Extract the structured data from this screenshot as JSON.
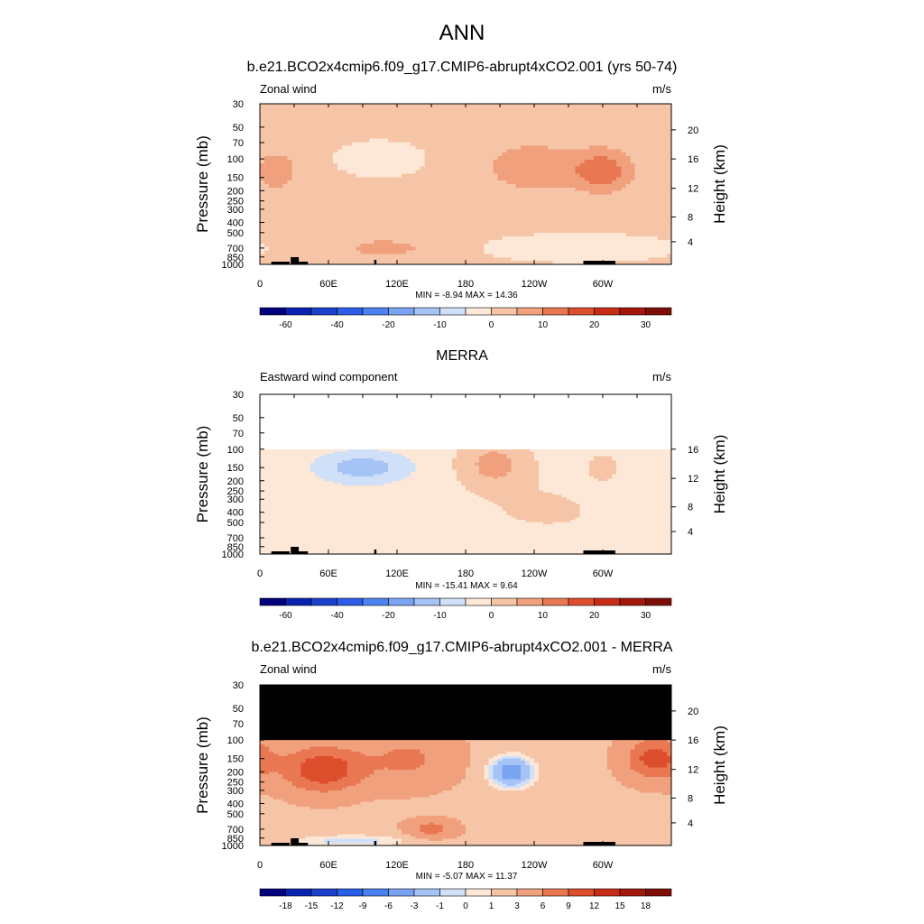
{
  "figure_title": "ANN",
  "colors": {
    "model_scale": [
      "#00007f",
      "#0a22b0",
      "#1a40cc",
      "#2a5ee6",
      "#4c82f0",
      "#7aa4f2",
      "#a6c3f5",
      "#cfe0f8",
      "#fde7d6",
      "#f6c4a6",
      "#f0a07c",
      "#e87752",
      "#dd4e2c",
      "#c72c16",
      "#a3170a",
      "#7d0d05"
    ],
    "diff_scale": [
      "#00007f",
      "#0a22b0",
      "#1a40cc",
      "#2a5ee6",
      "#4c82f0",
      "#7aa4f2",
      "#a6c3f5",
      "#cfe0f8",
      "#fde7d6",
      "#f6c4a6",
      "#f0a07c",
      "#e87752",
      "#dd4e2c",
      "#c72c16",
      "#a3170a",
      "#7d0d05"
    ],
    "missing": "#000000"
  },
  "chart_data": [
    {
      "type": "heatmap",
      "title": "b.e21.BCO2x4cmip6.f09_g17.CMIP6-abrupt4xCO2.001 (yrs 50-74)",
      "left_label": "Zonal wind",
      "unit": "m/s",
      "ylabel": "Pressure (mb)",
      "ylabel_right": "Height (km)",
      "x_ticks": [
        "0",
        "60E",
        "120E",
        "180",
        "120W",
        "60W"
      ],
      "y_ticks": [
        "30",
        "50",
        "70",
        "100",
        "150",
        "200",
        "250",
        "300",
        "400",
        "500",
        "700",
        "850",
        "1000"
      ],
      "y_ticks_right": [
        "20",
        "16",
        "12",
        "8",
        "4"
      ],
      "ylim": [
        1000,
        30
      ],
      "stats": "MIN =  -8.94  MAX =  14.36",
      "colorbar_ticks": [
        "-60",
        "-40",
        "-20",
        "-10",
        "0",
        "10",
        "20",
        "30"
      ],
      "yscale": "log",
      "xlim": [
        0,
        360
      ]
    },
    {
      "type": "heatmap",
      "title": "MERRA",
      "left_label": "Eastward wind component",
      "unit": "m/s",
      "ylabel": "Pressure (mb)",
      "ylabel_right": "Height (km)",
      "x_ticks": [
        "0",
        "60E",
        "120E",
        "180",
        "120W",
        "60W"
      ],
      "y_ticks": [
        "30",
        "50",
        "70",
        "100",
        "150",
        "200",
        "250",
        "300",
        "400",
        "500",
        "700",
        "850",
        "1000"
      ],
      "y_ticks_right": [
        "16",
        "12",
        "8",
        "4"
      ],
      "ylim": [
        1000,
        30
      ],
      "stats": "MIN = -15.41  MAX =   9.64",
      "colorbar_ticks": [
        "-60",
        "-40",
        "-20",
        "-10",
        "0",
        "10",
        "20",
        "30"
      ],
      "yscale": "log",
      "xlim": [
        0,
        360
      ]
    },
    {
      "type": "heatmap",
      "title": "b.e21.BCO2x4cmip6.f09_g17.CMIP6-abrupt4xCO2.001 - MERRA",
      "left_label": "Zonal wind",
      "unit": "m/s",
      "ylabel": "Pressure (mb)",
      "ylabel_right": "Height (km)",
      "x_ticks": [
        "0",
        "60E",
        "120E",
        "180",
        "120W",
        "60W"
      ],
      "y_ticks": [
        "30",
        "50",
        "70",
        "100",
        "150",
        "200",
        "250",
        "300",
        "400",
        "500",
        "700",
        "850",
        "1000"
      ],
      "y_ticks_right": [
        "20",
        "16",
        "12",
        "8",
        "4"
      ],
      "ylim": [
        1000,
        30
      ],
      "stats": "MIN =  -5.07  MAX =  11.37",
      "colorbar_ticks": [
        "-18",
        "-15",
        "-12",
        "-9",
        "-6",
        "-3",
        "-1",
        "0",
        "1",
        "3",
        "6",
        "9",
        "12",
        "15",
        "18"
      ],
      "yscale": "log",
      "xlim": [
        0,
        360
      ]
    }
  ]
}
